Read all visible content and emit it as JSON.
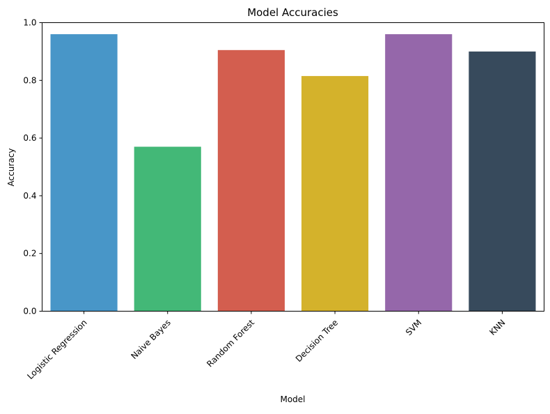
{
  "chart_data": {
    "type": "bar",
    "title": "Model Accuracies",
    "xlabel": "Model",
    "ylabel": "Accuracy",
    "categories": [
      "Logistic Regression",
      "Naive Bayes",
      "Random Forest",
      "Decision Tree",
      "SVM",
      "KNN"
    ],
    "values": [
      0.96,
      0.57,
      0.905,
      0.815,
      0.96,
      0.9
    ],
    "colors": [
      "#4896c8",
      "#43b877",
      "#d35e4f",
      "#d4b22b",
      "#9567aa",
      "#374a5c"
    ],
    "ylim": [
      0,
      1.0
    ],
    "yticks": [
      0.0,
      0.2,
      0.4,
      0.6,
      0.8,
      1.0
    ],
    "ytick_labels": [
      "0.0",
      "0.2",
      "0.4",
      "0.6",
      "0.8",
      "1.0"
    ],
    "xtick_rotation": 45,
    "grid": false,
    "legend": false
  }
}
